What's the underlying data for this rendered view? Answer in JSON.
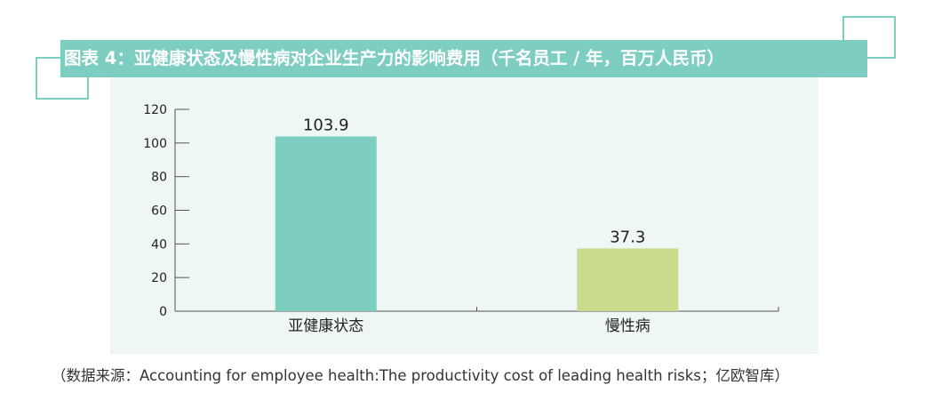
{
  "title": "图表 4：亚健康状态及慢性病对企业生产力的影响费用（千名员工 / 年，百万人民币）",
  "source": "（数据来源：Accounting for employee health:The productivity cost of leading health risks；亿欧智库）",
  "colors": {
    "accent": "#7ecdc1",
    "series": [
      "#7ecdc1",
      "#c9dc8d"
    ],
    "plot_background": "#eff7f4"
  },
  "chart_data": {
    "type": "bar",
    "title": "图表 4：亚健康状态及慢性病对企业生产力的影响费用（千名员工 / 年，百万人民币）",
    "categories": [
      "亚健康状态",
      "慢性病"
    ],
    "values": [
      103.9,
      37.3
    ],
    "value_labels": [
      "103.9",
      "37.3"
    ],
    "xlabel": "",
    "ylabel": "",
    "ylim": [
      0,
      120
    ],
    "yticks": [
      0,
      20,
      40,
      60,
      80,
      100,
      120
    ],
    "grid": false,
    "legend": "none"
  }
}
